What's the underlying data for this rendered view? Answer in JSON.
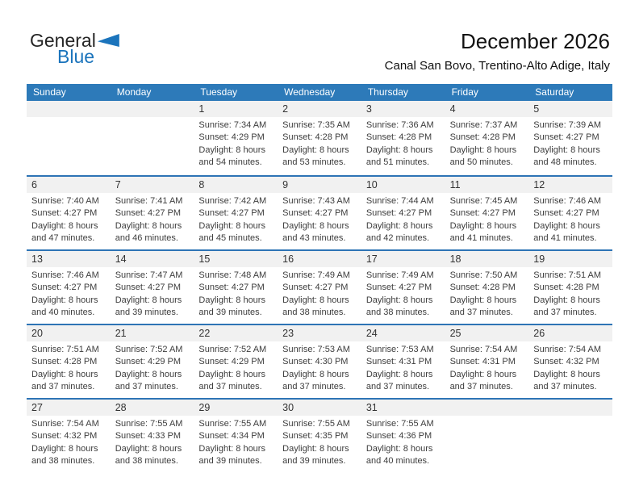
{
  "logo": {
    "line1": "General",
    "line2": "Blue"
  },
  "header": {
    "title": "December 2026",
    "subtitle": "Canal San Bovo, Trentino-Alto Adige, Italy"
  },
  "colors": {
    "header_blue": "#2d7ab9",
    "divider_blue": "#2e74b5",
    "strip_gray": "#f1f1f1",
    "logo_blue": "#1b74bc"
  },
  "calendar": {
    "weekdays": [
      "Sunday",
      "Monday",
      "Tuesday",
      "Wednesday",
      "Thursday",
      "Friday",
      "Saturday"
    ],
    "labels": {
      "sunrise": "Sunrise",
      "sunset": "Sunset",
      "daylight": "Daylight"
    },
    "weeks": [
      [
        null,
        null,
        {
          "day": "1",
          "sunrise": "7:34 AM",
          "sunset": "4:29 PM",
          "daylight": "8 hours and 54 minutes."
        },
        {
          "day": "2",
          "sunrise": "7:35 AM",
          "sunset": "4:28 PM",
          "daylight": "8 hours and 53 minutes."
        },
        {
          "day": "3",
          "sunrise": "7:36 AM",
          "sunset": "4:28 PM",
          "daylight": "8 hours and 51 minutes."
        },
        {
          "day": "4",
          "sunrise": "7:37 AM",
          "sunset": "4:28 PM",
          "daylight": "8 hours and 50 minutes."
        },
        {
          "day": "5",
          "sunrise": "7:39 AM",
          "sunset": "4:27 PM",
          "daylight": "8 hours and 48 minutes."
        }
      ],
      [
        {
          "day": "6",
          "sunrise": "7:40 AM",
          "sunset": "4:27 PM",
          "daylight": "8 hours and 47 minutes."
        },
        {
          "day": "7",
          "sunrise": "7:41 AM",
          "sunset": "4:27 PM",
          "daylight": "8 hours and 46 minutes."
        },
        {
          "day": "8",
          "sunrise": "7:42 AM",
          "sunset": "4:27 PM",
          "daylight": "8 hours and 45 minutes."
        },
        {
          "day": "9",
          "sunrise": "7:43 AM",
          "sunset": "4:27 PM",
          "daylight": "8 hours and 43 minutes."
        },
        {
          "day": "10",
          "sunrise": "7:44 AM",
          "sunset": "4:27 PM",
          "daylight": "8 hours and 42 minutes."
        },
        {
          "day": "11",
          "sunrise": "7:45 AM",
          "sunset": "4:27 PM",
          "daylight": "8 hours and 41 minutes."
        },
        {
          "day": "12",
          "sunrise": "7:46 AM",
          "sunset": "4:27 PM",
          "daylight": "8 hours and 41 minutes."
        }
      ],
      [
        {
          "day": "13",
          "sunrise": "7:46 AM",
          "sunset": "4:27 PM",
          "daylight": "8 hours and 40 minutes."
        },
        {
          "day": "14",
          "sunrise": "7:47 AM",
          "sunset": "4:27 PM",
          "daylight": "8 hours and 39 minutes."
        },
        {
          "day": "15",
          "sunrise": "7:48 AM",
          "sunset": "4:27 PM",
          "daylight": "8 hours and 39 minutes."
        },
        {
          "day": "16",
          "sunrise": "7:49 AM",
          "sunset": "4:27 PM",
          "daylight": "8 hours and 38 minutes."
        },
        {
          "day": "17",
          "sunrise": "7:49 AM",
          "sunset": "4:27 PM",
          "daylight": "8 hours and 38 minutes."
        },
        {
          "day": "18",
          "sunrise": "7:50 AM",
          "sunset": "4:28 PM",
          "daylight": "8 hours and 37 minutes."
        },
        {
          "day": "19",
          "sunrise": "7:51 AM",
          "sunset": "4:28 PM",
          "daylight": "8 hours and 37 minutes."
        }
      ],
      [
        {
          "day": "20",
          "sunrise": "7:51 AM",
          "sunset": "4:28 PM",
          "daylight": "8 hours and 37 minutes."
        },
        {
          "day": "21",
          "sunrise": "7:52 AM",
          "sunset": "4:29 PM",
          "daylight": "8 hours and 37 minutes."
        },
        {
          "day": "22",
          "sunrise": "7:52 AM",
          "sunset": "4:29 PM",
          "daylight": "8 hours and 37 minutes."
        },
        {
          "day": "23",
          "sunrise": "7:53 AM",
          "sunset": "4:30 PM",
          "daylight": "8 hours and 37 minutes."
        },
        {
          "day": "24",
          "sunrise": "7:53 AM",
          "sunset": "4:31 PM",
          "daylight": "8 hours and 37 minutes."
        },
        {
          "day": "25",
          "sunrise": "7:54 AM",
          "sunset": "4:31 PM",
          "daylight": "8 hours and 37 minutes."
        },
        {
          "day": "26",
          "sunrise": "7:54 AM",
          "sunset": "4:32 PM",
          "daylight": "8 hours and 37 minutes."
        }
      ],
      [
        {
          "day": "27",
          "sunrise": "7:54 AM",
          "sunset": "4:32 PM",
          "daylight": "8 hours and 38 minutes."
        },
        {
          "day": "28",
          "sunrise": "7:55 AM",
          "sunset": "4:33 PM",
          "daylight": "8 hours and 38 minutes."
        },
        {
          "day": "29",
          "sunrise": "7:55 AM",
          "sunset": "4:34 PM",
          "daylight": "8 hours and 39 minutes."
        },
        {
          "day": "30",
          "sunrise": "7:55 AM",
          "sunset": "4:35 PM",
          "daylight": "8 hours and 39 minutes."
        },
        {
          "day": "31",
          "sunrise": "7:55 AM",
          "sunset": "4:36 PM",
          "daylight": "8 hours and 40 minutes."
        },
        null,
        null
      ]
    ]
  }
}
